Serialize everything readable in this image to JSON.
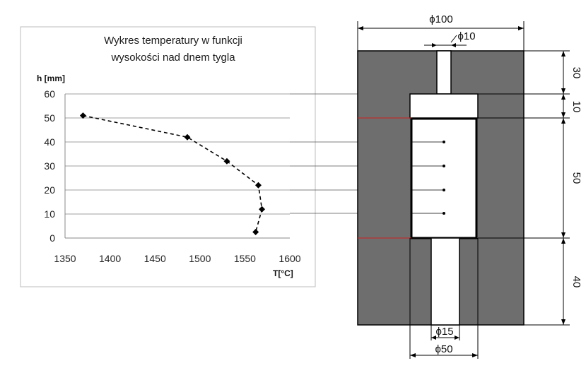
{
  "chart_data": {
    "type": "line",
    "title_lines": [
      "Wykres temperatury w funkcji",
      "wysokości nad dnem tygla"
    ],
    "xlabel": "T[°C]",
    "ylabel": "h [mm]",
    "xlim": [
      1350,
      1600
    ],
    "ylim": [
      0,
      60
    ],
    "x_ticks": [
      1350,
      1400,
      1450,
      1500,
      1550,
      1600
    ],
    "y_ticks": [
      0,
      10,
      20,
      30,
      40,
      50,
      60
    ],
    "grid": "horizontal",
    "legend": "none",
    "series": [
      {
        "line_style": "dashed",
        "marker": "diamond",
        "color": "#000000",
        "points": [
          {
            "x": 1370,
            "y": 51
          },
          {
            "x": 1486,
            "y": 42
          },
          {
            "x": 1530,
            "y": 32
          },
          {
            "x": 1565,
            "y": 22
          },
          {
            "x": 1569,
            "y": 12
          },
          {
            "x": 1562,
            "y": 2.5
          }
        ]
      }
    ]
  },
  "drawing": {
    "dimensions": {
      "outer_diameter": "ϕ100",
      "top_channel_diameter": "ϕ10",
      "bottom_channel_diameter": "ϕ15",
      "bottom_recess_diameter": "ϕ50",
      "height_top": "30",
      "height_gap": "10",
      "height_cavity": "50",
      "height_bottom": "40"
    },
    "colors": {
      "mold": "#6e6e6e",
      "cavity": "#ffffff",
      "marker": "#d02020"
    }
  }
}
